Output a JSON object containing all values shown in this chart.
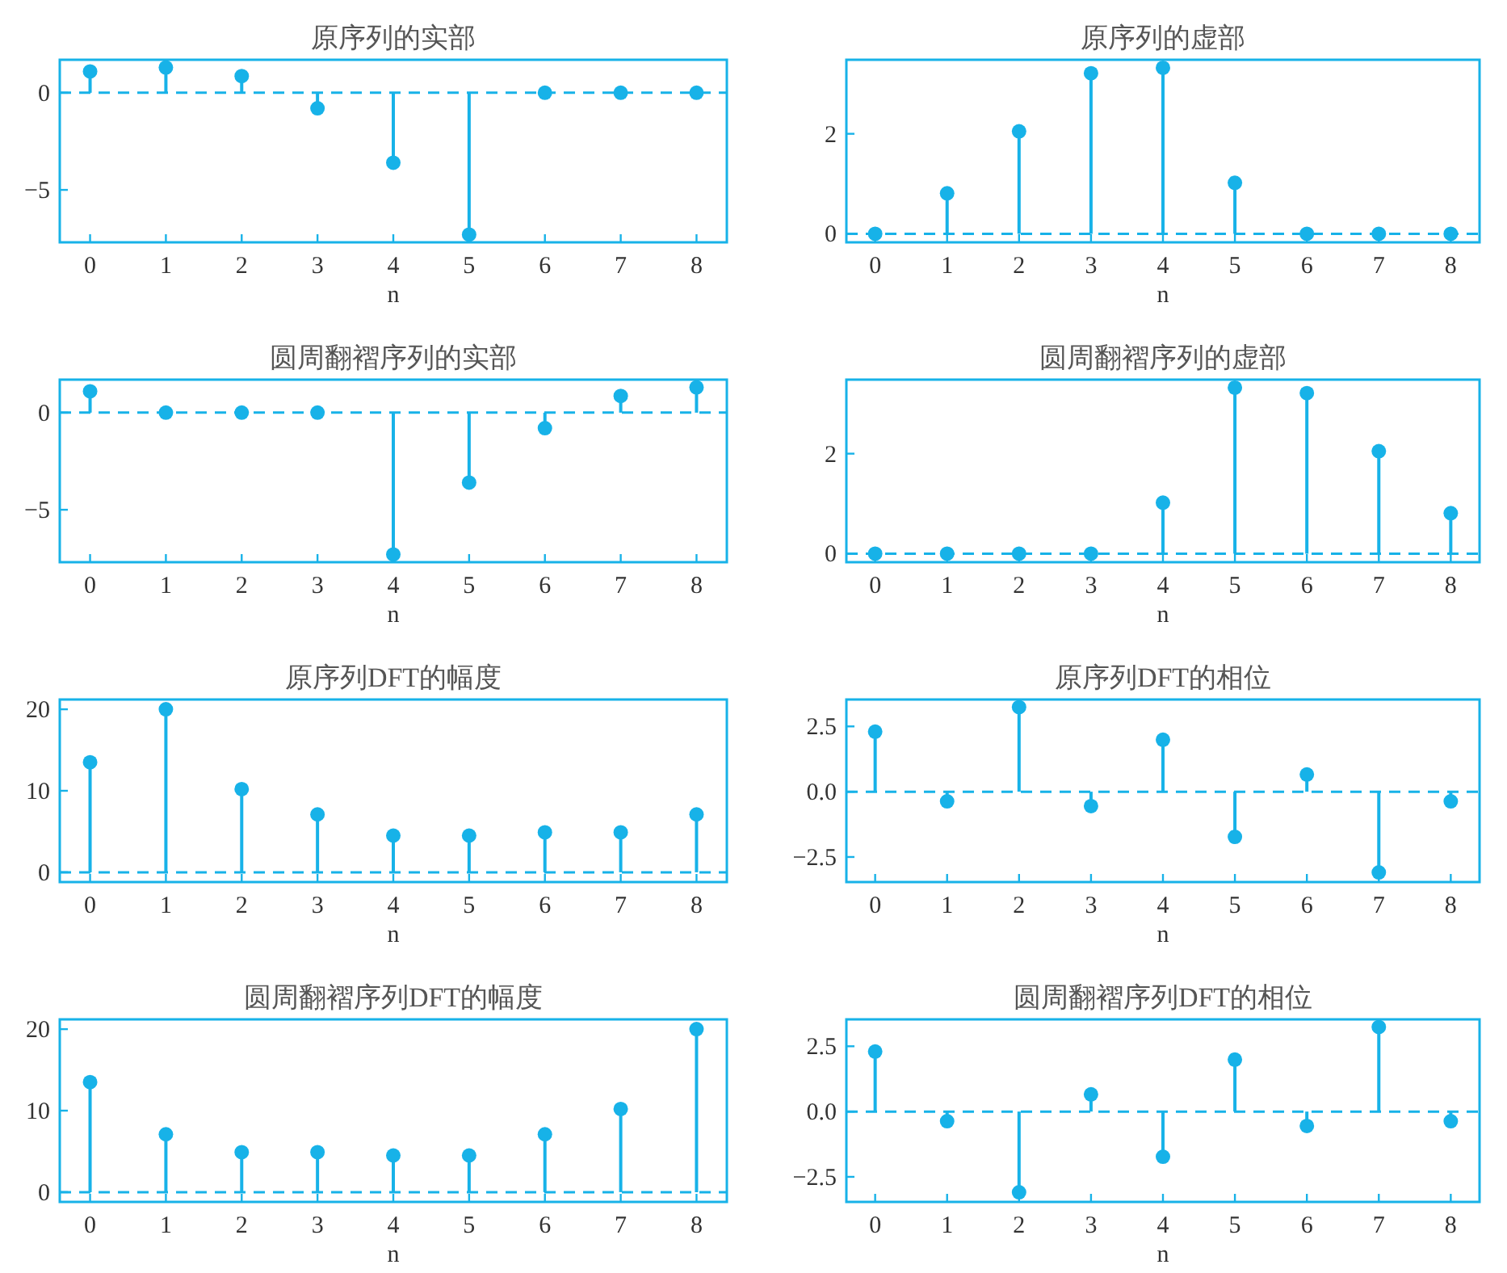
{
  "chart_data": [
    {
      "type": "lollipop",
      "title": "原序列的实部",
      "xlabel": "n",
      "x": [
        0,
        1,
        2,
        3,
        4,
        5,
        6,
        7,
        8
      ],
      "values": [
        1.1,
        1.3,
        0.86,
        -0.8,
        -3.6,
        -7.3,
        0,
        0,
        0
      ],
      "color": "#17b2e8",
      "marker": "circle",
      "xlim": [
        -0.4,
        8.4
      ],
      "ylim": [
        -7.7,
        1.7
      ],
      "xticks": [
        0,
        1,
        2,
        3,
        4,
        5,
        6,
        7,
        8
      ],
      "yticks": [
        {
          "value": -5,
          "label": "−5"
        },
        0
      ],
      "ref_lines": [
        {
          "axis": "y",
          "value": 0,
          "line_style": "dashed"
        }
      ]
    },
    {
      "type": "lollipop",
      "title": "原序列的虚部",
      "xlabel": "n",
      "x": [
        0,
        1,
        2,
        3,
        4,
        5,
        6,
        7,
        8
      ],
      "values": [
        0,
        0.81,
        2.05,
        3.21,
        3.32,
        1.02,
        0,
        0,
        0
      ],
      "color": "#17b2e8",
      "marker": "circle",
      "xlim": [
        -0.4,
        8.4
      ],
      "ylim": [
        -0.17,
        3.48
      ],
      "xticks": [
        0,
        1,
        2,
        3,
        4,
        5,
        6,
        7,
        8
      ],
      "yticks": [
        0,
        2
      ],
      "ref_lines": [
        {
          "axis": "y",
          "value": 0,
          "line_style": "dashed"
        }
      ]
    },
    {
      "type": "lollipop",
      "title": "圆周翻褶序列的实部",
      "xlabel": "n",
      "x": [
        0,
        1,
        2,
        3,
        4,
        5,
        6,
        7,
        8
      ],
      "values": [
        1.1,
        0,
        0,
        0,
        -7.3,
        -3.6,
        -0.8,
        0.86,
        1.3
      ],
      "color": "#17b2e8",
      "marker": "circle",
      "xlim": [
        -0.4,
        8.4
      ],
      "ylim": [
        -7.7,
        1.7
      ],
      "xticks": [
        0,
        1,
        2,
        3,
        4,
        5,
        6,
        7,
        8
      ],
      "yticks": [
        {
          "value": -5,
          "label": "−5"
        },
        0
      ],
      "ref_lines": [
        {
          "axis": "y",
          "value": 0,
          "line_style": "dashed"
        }
      ]
    },
    {
      "type": "lollipop",
      "title": "圆周翻褶序列的虚部",
      "xlabel": "n",
      "x": [
        0,
        1,
        2,
        3,
        4,
        5,
        6,
        7,
        8
      ],
      "values": [
        0,
        0,
        0,
        0,
        1.02,
        3.32,
        3.21,
        2.05,
        0.81
      ],
      "color": "#17b2e8",
      "marker": "circle",
      "xlim": [
        -0.4,
        8.4
      ],
      "ylim": [
        -0.17,
        3.48
      ],
      "xticks": [
        0,
        1,
        2,
        3,
        4,
        5,
        6,
        7,
        8
      ],
      "yticks": [
        0,
        2
      ],
      "ref_lines": [
        {
          "axis": "y",
          "value": 0,
          "line_style": "dashed"
        }
      ]
    },
    {
      "type": "lollipop",
      "title": "原序列DFT的幅度",
      "xlabel": "n",
      "x": [
        0,
        1,
        2,
        3,
        4,
        5,
        6,
        7,
        8
      ],
      "values": [
        13.5,
        20.0,
        10.2,
        7.1,
        4.5,
        4.5,
        4.9,
        4.9,
        7.1
      ],
      "color": "#17b2e8",
      "marker": "circle",
      "xlim": [
        -0.4,
        8.4
      ],
      "ylim": [
        -1.2,
        21.2
      ],
      "xticks": [
        0,
        1,
        2,
        3,
        4,
        5,
        6,
        7,
        8
      ],
      "yticks": [
        0,
        10,
        20
      ],
      "ref_lines": [
        {
          "axis": "y",
          "value": 0,
          "line_style": "dashed"
        }
      ]
    },
    {
      "type": "lollipop",
      "title": "原序列DFT的相位",
      "xlabel": "n",
      "x": [
        0,
        1,
        2,
        3,
        4,
        5,
        6,
        7,
        8
      ],
      "values": [
        2.3,
        -0.37,
        3.24,
        -0.55,
        1.99,
        -1.73,
        0.66,
        -3.09,
        -0.37
      ],
      "color": "#17b2e8",
      "marker": "circle",
      "xlim": [
        -0.4,
        8.4
      ],
      "ylim": [
        -3.46,
        3.53
      ],
      "xticks": [
        0,
        1,
        2,
        3,
        4,
        5,
        6,
        7,
        8
      ],
      "yticks": [
        {
          "value": -2.5,
          "label": "−2.5"
        },
        {
          "value": 0,
          "label": "0.0"
        },
        2.5
      ],
      "ref_lines": [
        {
          "axis": "y",
          "value": 0,
          "line_style": "dashed"
        }
      ]
    },
    {
      "type": "lollipop",
      "title": "圆周翻褶序列DFT的幅度",
      "xlabel": "n",
      "x": [
        0,
        1,
        2,
        3,
        4,
        5,
        6,
        7,
        8
      ],
      "values": [
        13.5,
        7.1,
        4.9,
        4.9,
        4.5,
        4.5,
        7.1,
        10.2,
        20.0
      ],
      "color": "#17b2e8",
      "marker": "circle",
      "xlim": [
        -0.4,
        8.4
      ],
      "ylim": [
        -1.2,
        21.2
      ],
      "xticks": [
        0,
        1,
        2,
        3,
        4,
        5,
        6,
        7,
        8
      ],
      "yticks": [
        0,
        10,
        20
      ],
      "ref_lines": [
        {
          "axis": "y",
          "value": 0,
          "line_style": "dashed"
        }
      ]
    },
    {
      "type": "lollipop",
      "title": "圆周翻褶序列DFT的相位",
      "xlabel": "n",
      "x": [
        0,
        1,
        2,
        3,
        4,
        5,
        6,
        7,
        8
      ],
      "values": [
        2.3,
        -0.37,
        -3.09,
        0.66,
        -1.73,
        1.99,
        -0.55,
        3.24,
        -0.37
      ],
      "color": "#17b2e8",
      "marker": "circle",
      "xlim": [
        -0.4,
        8.4
      ],
      "ylim": [
        -3.46,
        3.53
      ],
      "xticks": [
        0,
        1,
        2,
        3,
        4,
        5,
        6,
        7,
        8
      ],
      "yticks": [
        {
          "value": -2.5,
          "label": "−2.5"
        },
        {
          "value": 0,
          "label": "0.0"
        },
        2.5
      ],
      "ref_lines": [
        {
          "axis": "y",
          "value": 0,
          "line_style": "dashed"
        }
      ]
    }
  ]
}
